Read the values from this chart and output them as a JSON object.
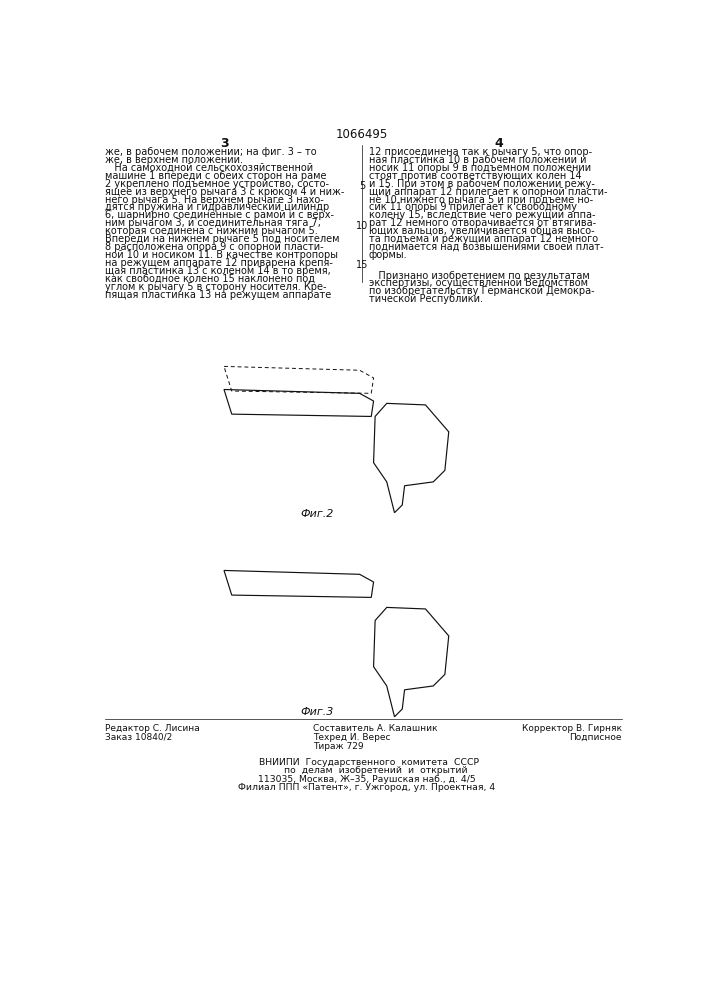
{
  "patent_number": "1066495",
  "page_left": "3",
  "page_right": "4",
  "bg_color": "#ffffff",
  "text_color": "#000000",
  "text_left_col": [
    "же, в рабочем положении; на фиг. 3 – то",
    "же, в верхнем положении.",
    "   На самоходной сельскохозяйственной",
    "машине 1 впереди с обеих сторон на раме",
    "2 укреплено подъемное устройство, состо-",
    "ящее из верхнего рычага 3 с крюком 4 и ниж-",
    "него рычага 5. На верхнем рычаге 3 нахо-",
    "дятся пружина и гидравлический цилиндр",
    "6, шарнирно соединенные с рамой и с верх-",
    "ним рычагом 3, и соединительная тяга 7,",
    "которая соединена с нижним рычагом 5.",
    "Впереди на нижнем рычаге 5 под носителем",
    "8 расположена опора 9 с опорной пласти-",
    "ной 10 и носиком 11. В качестве контропоры",
    "на режущем аппарате 12 приварена крепя-",
    "щая пластинка 13 с коленом 14 в то время,",
    "как свободное колено 15 наклонено под",
    "углом к рычагу 5 в сторону носителя. Кре-",
    "пящая пластинка 13 на режущем аппарате"
  ],
  "text_right_col": [
    "12 присоединена так к рычагу 5, что опор-",
    "ная пластинка 10 в рабочем положении и",
    "носик 11 опоры 9 в подъемном положении",
    "стоят против соответствующих колен 14",
    "и 15. При этом в рабочем положении режу-",
    "щий аппарат 12 прилегает к опорной пласти-",
    "не 10 нижнего рычага 5 и при подъеме но-",
    "сик 11 опоры 9 прилегает к свободному",
    "колену 15, вследствие чего режущий аппа-",
    "рат 12 немного отворачивается от втягива-",
    "ющих вальцов, увеличивается общая высо-",
    "та подъема и режущий аппарат 12 немного",
    "поднимается над возвышениями своей плат-",
    "формы."
  ],
  "recognized_text": [
    "   Признано изобретением по результатам",
    "экспертизы, осуществленной Ведомством",
    "по изобретательству Германской Демокра-",
    "тической Республики."
  ],
  "fig2_label": "Фиг.2",
  "fig3_label": "Фиг.3",
  "footer_left": [
    "Редактор С. Лисина",
    "Заказ 10840/2"
  ],
  "footer_center": [
    "Составитель А. Калашник",
    "Техред И. Верес",
    "Тираж 729"
  ],
  "footer_right": [
    "Корректор В. Гирняк",
    "Подписное"
  ],
  "vnipi_text": [
    "     ВНИИПИ  Государственного  комитета  СССР",
    "         по  делам  изобретений  и  открытий",
    "   113035, Москва, Ж–35, Раушская наб., д. 4/5",
    "   Филиал ППП «Патент», г. Ужгород, ул. Проектная, 4"
  ]
}
